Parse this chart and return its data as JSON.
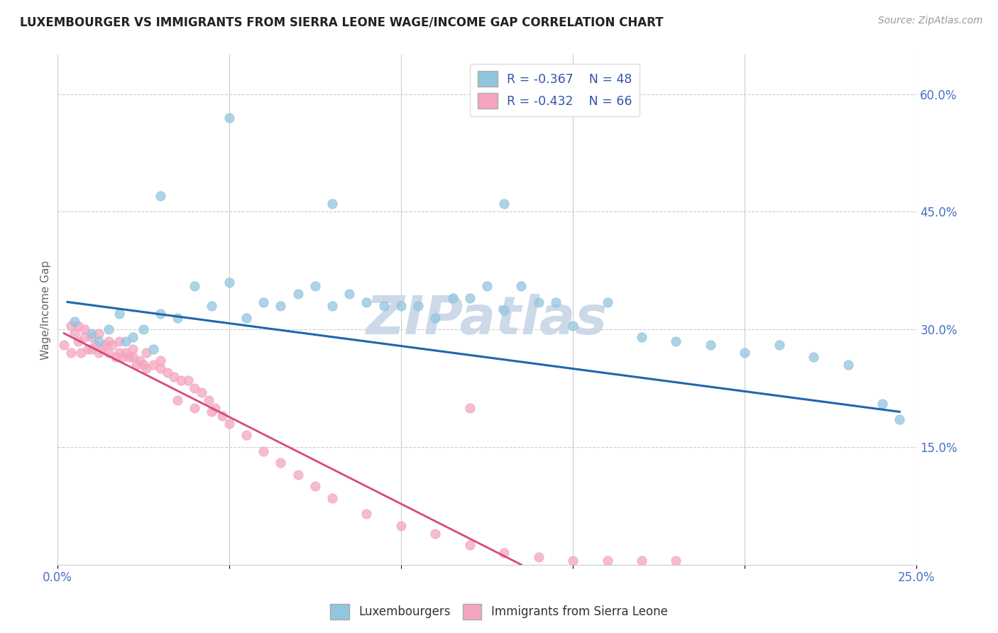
{
  "title": "LUXEMBOURGER VS IMMIGRANTS FROM SIERRA LEONE WAGE/INCOME GAP CORRELATION CHART",
  "source": "Source: ZipAtlas.com",
  "ylabel": "Wage/Income Gap",
  "xlim": [
    0.0,
    0.25
  ],
  "ylim": [
    0.0,
    0.65
  ],
  "xticks": [
    0.0,
    0.05,
    0.1,
    0.15,
    0.2,
    0.25
  ],
  "xtick_labels": [
    "0.0%",
    "",
    "",
    "",
    "",
    "25.0%"
  ],
  "ytick_labels_right": [
    "15.0%",
    "30.0%",
    "45.0%",
    "60.0%"
  ],
  "yticks_right": [
    0.15,
    0.3,
    0.45,
    0.6
  ],
  "blue_R": -0.367,
  "blue_N": 48,
  "pink_R": -0.432,
  "pink_N": 66,
  "blue_color": "#92c5de",
  "pink_color": "#f4a6be",
  "blue_line_color": "#2166ac",
  "pink_line_color": "#d6487e",
  "watermark": "ZIPatlas",
  "watermark_color": "#ccd9e8",
  "blue_scatter_x": [
    0.005,
    0.01,
    0.012,
    0.015,
    0.018,
    0.02,
    0.022,
    0.025,
    0.028,
    0.03,
    0.035,
    0.04,
    0.045,
    0.05,
    0.055,
    0.06,
    0.065,
    0.07,
    0.075,
    0.08,
    0.085,
    0.09,
    0.095,
    0.1,
    0.105,
    0.11,
    0.115,
    0.12,
    0.125,
    0.13,
    0.135,
    0.14,
    0.145,
    0.15,
    0.16,
    0.17,
    0.18,
    0.19,
    0.2,
    0.21,
    0.22,
    0.23,
    0.24,
    0.245,
    0.03,
    0.05,
    0.08,
    0.13
  ],
  "blue_scatter_y": [
    0.31,
    0.295,
    0.285,
    0.3,
    0.32,
    0.285,
    0.29,
    0.3,
    0.275,
    0.32,
    0.315,
    0.355,
    0.33,
    0.36,
    0.315,
    0.335,
    0.33,
    0.345,
    0.355,
    0.33,
    0.345,
    0.335,
    0.33,
    0.33,
    0.33,
    0.315,
    0.34,
    0.34,
    0.355,
    0.325,
    0.355,
    0.335,
    0.335,
    0.305,
    0.335,
    0.29,
    0.285,
    0.28,
    0.27,
    0.28,
    0.265,
    0.255,
    0.205,
    0.185,
    0.47,
    0.57,
    0.46,
    0.46
  ],
  "pink_scatter_x": [
    0.002,
    0.004,
    0.005,
    0.006,
    0.007,
    0.008,
    0.009,
    0.01,
    0.011,
    0.012,
    0.013,
    0.014,
    0.015,
    0.016,
    0.017,
    0.018,
    0.019,
    0.02,
    0.021,
    0.022,
    0.023,
    0.024,
    0.025,
    0.026,
    0.028,
    0.03,
    0.032,
    0.034,
    0.036,
    0.038,
    0.04,
    0.042,
    0.044,
    0.046,
    0.048,
    0.05,
    0.055,
    0.06,
    0.065,
    0.07,
    0.075,
    0.08,
    0.09,
    0.1,
    0.11,
    0.12,
    0.13,
    0.14,
    0.15,
    0.16,
    0.17,
    0.18,
    0.004,
    0.006,
    0.008,
    0.01,
    0.012,
    0.015,
    0.018,
    0.022,
    0.026,
    0.03,
    0.035,
    0.04,
    0.045,
    0.12
  ],
  "pink_scatter_y": [
    0.28,
    0.27,
    0.295,
    0.285,
    0.27,
    0.29,
    0.275,
    0.275,
    0.28,
    0.27,
    0.275,
    0.28,
    0.27,
    0.28,
    0.265,
    0.27,
    0.265,
    0.27,
    0.265,
    0.265,
    0.255,
    0.26,
    0.255,
    0.25,
    0.255,
    0.25,
    0.245,
    0.24,
    0.235,
    0.235,
    0.225,
    0.22,
    0.21,
    0.2,
    0.19,
    0.18,
    0.165,
    0.145,
    0.13,
    0.115,
    0.1,
    0.085,
    0.065,
    0.05,
    0.04,
    0.025,
    0.015,
    0.01,
    0.005,
    0.005,
    0.005,
    0.005,
    0.305,
    0.305,
    0.3,
    0.29,
    0.295,
    0.285,
    0.285,
    0.275,
    0.27,
    0.26,
    0.21,
    0.2,
    0.195,
    0.2
  ],
  "blue_trendline_x": [
    0.003,
    0.245
  ],
  "blue_trendline_y": [
    0.335,
    0.195
  ],
  "pink_trendline_x": [
    0.002,
    0.135
  ],
  "pink_trendline_y": [
    0.295,
    0.0
  ]
}
